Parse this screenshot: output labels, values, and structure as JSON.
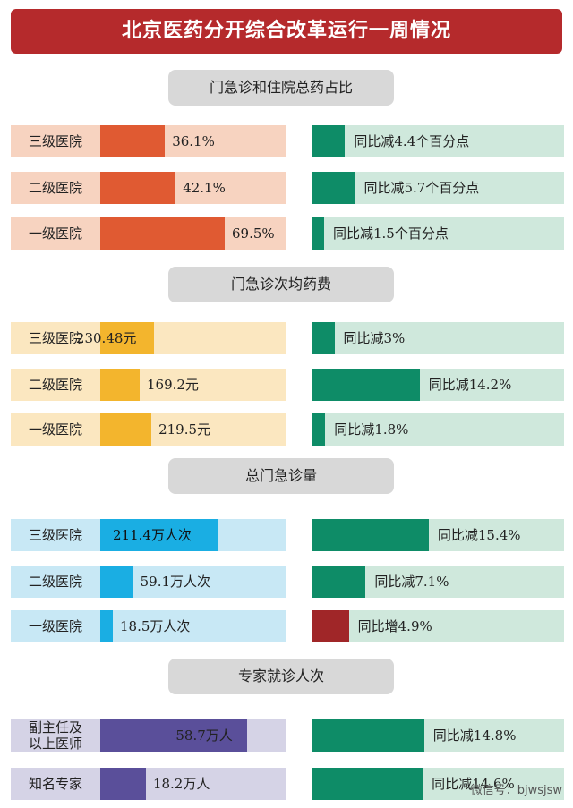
{
  "title": "北京医药分开综合改革运行一周情况",
  "watermark": "微信号：bjwsjsw",
  "colors": {
    "title_bg": "#b52a2c",
    "orange_fill": "#e05a32",
    "orange_bg": "#f7d3c0",
    "yellow_fill": "#f3b52d",
    "yellow_bg": "#fbe7c0",
    "blue_fill": "#1aaee3",
    "blue_bg": "#c8e8f5",
    "purple_fill": "#5a4f9a",
    "purple_bg": "#d5d3e6",
    "green_fill": "#0e8c67",
    "green_bg": "#cfe8dc",
    "red_fill": "#a02628"
  },
  "chart_data": [
    {
      "type": "bar",
      "title": "门急诊和住院总药占比",
      "categories": [
        "三级医院",
        "二级医院",
        "一级医院"
      ],
      "values": [
        36.1,
        42.1,
        69.5
      ],
      "value_labels": [
        "36.1%",
        "42.1%",
        "69.5%"
      ],
      "change_values": [
        -4.4,
        -5.7,
        -1.5
      ],
      "change_labels": [
        "同比减4.4个百分点",
        "同比减5.7个百分点",
        "同比减1.5个百分点"
      ]
    },
    {
      "type": "bar",
      "title": "门急诊次均药费",
      "categories": [
        "三级医院",
        "二级医院",
        "一级医院"
      ],
      "values": [
        230.48,
        169.2,
        219.5
      ],
      "value_labels": [
        "230.48元",
        "169.2元",
        "219.5元"
      ],
      "change_values": [
        -3,
        -14.2,
        -1.8
      ],
      "change_labels": [
        "同比减3%",
        "同比减14.2%",
        "同比减1.8%"
      ]
    },
    {
      "type": "bar",
      "title": "总门急诊量",
      "categories": [
        "三级医院",
        "二级医院",
        "一级医院"
      ],
      "values": [
        211.4,
        59.1,
        18.5
      ],
      "value_labels": [
        "211.4万人次",
        "59.1万人次",
        "18.5万人次"
      ],
      "change_values": [
        -15.4,
        -7.1,
        4.9
      ],
      "change_labels": [
        "同比减15.4%",
        "同比减7.1%",
        "同比增4.9%"
      ]
    },
    {
      "type": "bar",
      "title": "专家就诊人次",
      "categories": [
        "副主任及以上医师",
        "知名专家"
      ],
      "values": [
        58.7,
        18.2
      ],
      "value_labels": [
        "58.7万人",
        "18.2万人"
      ],
      "change_values": [
        -14.8,
        -14.6
      ],
      "change_labels": [
        "同比减14.8%",
        "同比减14.6%"
      ]
    }
  ]
}
